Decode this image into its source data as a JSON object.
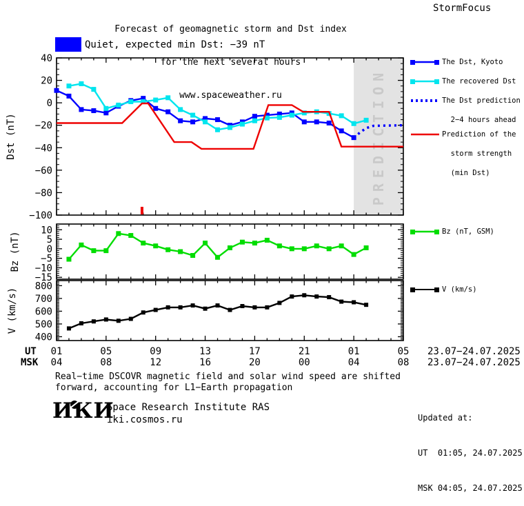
{
  "header": {
    "title_line1": "Forecast of geomagnetic storm and Dst index",
    "title_line2": "for the next several hours",
    "title_line3": "www.spaceweather.ru",
    "brand": "StormFocus"
  },
  "status": {
    "label": "Quiet, expected min Dst: −39 nT",
    "box_color": "#0000ff"
  },
  "colors": {
    "dst_kyoto": "#0000ff",
    "recovered_dst": "#00e5ee",
    "dst_prediction": "#0000ff",
    "storm_prediction": "#ee0000",
    "bz": "#00dd00",
    "v": "#000000",
    "prediction_band": "#e3e3e3",
    "prediction_band_text": "#c9c9c9"
  },
  "chart_data": [
    {
      "id": "dst",
      "type": "line",
      "ylabel": "Dst (nT)",
      "ylim": [
        -100,
        40
      ],
      "yticks": [
        40,
        20,
        0,
        -20,
        -40,
        -60,
        -80,
        -100
      ],
      "y_minor_step": 5,
      "x_hours_range": [
        0,
        28
      ],
      "prediction_band": {
        "label": "PREDICTION",
        "from_hour": 24,
        "to_hour": 28
      },
      "onset_marker_hour": 6.9,
      "series": [
        {
          "name": "The Dst, Kyoto",
          "color": "#0000ff",
          "style": "solid",
          "marker": true,
          "msize": 7,
          "x_start": 0,
          "x_step": 1,
          "values": [
            11,
            6,
            -6,
            -7,
            -9,
            -3,
            2,
            4,
            -5,
            -8,
            -16,
            -17,
            -14,
            -15,
            -20,
            -17,
            -12,
            -11,
            -10,
            -9,
            -17,
            -17,
            -18,
            -25,
            -31
          ]
        },
        {
          "name": "The recovered Dst",
          "color": "#00e5ee",
          "style": "solid",
          "marker": true,
          "msize": 7,
          "x_start": 1,
          "x_step": 1,
          "values": [
            15,
            17,
            12,
            -5,
            -2,
            1,
            1,
            2.5,
            4.5,
            -6,
            -11,
            -17,
            -24,
            -22,
            -19,
            -16,
            -13.5,
            -13,
            -11,
            -9,
            -8,
            -9.5,
            -11.5,
            -18.5,
            -15.5
          ]
        },
        {
          "name": "The Dst prediction 2−4 hours ahead",
          "color": "#0000ff",
          "style": "dotted",
          "marker": false,
          "points": [
            [
              24,
              -31
            ],
            [
              24.5,
              -26.5
            ],
            [
              25,
              -22.5
            ],
            [
              25.6,
              -20.5
            ],
            [
              28,
              -20
            ]
          ]
        },
        {
          "name": "Prediction of the storm strength (min Dst)",
          "color": "#ee0000",
          "style": "solid",
          "marker": false,
          "points": [
            [
              0,
              -18
            ],
            [
              5.3,
              -18
            ],
            [
              6.9,
              -0.5
            ],
            [
              7.4,
              -0.5
            ],
            [
              9.5,
              -35
            ],
            [
              10.9,
              -35
            ],
            [
              11.7,
              -41
            ],
            [
              15.9,
              -41
            ],
            [
              17.1,
              -2
            ],
            [
              19,
              -2
            ],
            [
              19.9,
              -8
            ],
            [
              22,
              -8
            ],
            [
              23,
              -39
            ],
            [
              28,
              -39
            ]
          ]
        }
      ]
    },
    {
      "id": "bz",
      "type": "line",
      "ylabel": "Bz (nT)",
      "ylim": [
        -16,
        13
      ],
      "yticks": [
        10,
        5,
        0,
        -5,
        -10,
        -15
      ],
      "y_minor_step": 1,
      "x_hours_range": [
        0,
        28
      ],
      "series": [
        {
          "name": "Bz (nT, GSM)",
          "color": "#00dd00",
          "style": "solid",
          "marker": true,
          "msize": 7,
          "x_start": 1,
          "x_step": 1,
          "values": [
            -5.5,
            2,
            -1,
            -1,
            8,
            7,
            3,
            1.5,
            -0.5,
            -1.5,
            -3.5,
            3,
            -4.5,
            0.5,
            3.5,
            3,
            4.5,
            1.5,
            0,
            0,
            1.5,
            0,
            1.5,
            -3,
            0.5
          ]
        }
      ]
    },
    {
      "id": "v",
      "type": "line",
      "ylabel": "V (km/s)",
      "ylim": [
        370,
        840
      ],
      "yticks": [
        800,
        700,
        600,
        500,
        400
      ],
      "y_minor_step": 10,
      "x_hours_range": [
        0,
        28
      ],
      "series": [
        {
          "name": "V (km/s)",
          "color": "#000000",
          "style": "solid",
          "marker": true,
          "msize": 6,
          "x_start": 1,
          "x_step": 1,
          "values": [
            465,
            505,
            520,
            535,
            525,
            540,
            590,
            610,
            630,
            630,
            645,
            620,
            645,
            610,
            640,
            630,
            630,
            665,
            715,
            725,
            715,
            710,
            675,
            670,
            650
          ]
        }
      ]
    }
  ],
  "x_axis": {
    "row1_label": "UT",
    "row2_label": "MSK",
    "row1_ticks": [
      "01",
      "05",
      "09",
      "13",
      "17",
      "21",
      "01",
      "05"
    ],
    "row2_ticks": [
      "04",
      "08",
      "12",
      "16",
      "20",
      "00",
      "04",
      "08"
    ],
    "row1_date": "23.07−24.07.2025",
    "row2_date": "23.07−24.07.2025"
  },
  "legend": {
    "dst_kyoto": "The Dst, Kyoto",
    "recovered": "The recovered Dst",
    "prediction_l1": "The Dst prediction",
    "prediction_l2": "2−4 hours ahead",
    "storm_l1": "Prediction of the",
    "storm_l2": "storm strength",
    "storm_l3": "(min Dst)",
    "bz": "Bz (nT, GSM)",
    "v": "V (km/s)"
  },
  "footnote": {
    "line1": "Real−time DSCOVR magnetic field and solar wind speed are shifted",
    "line2": "forward, accounting for L1−Earth propagation"
  },
  "footer": {
    "logo": "ИКИ",
    "institute": "Space Research Institute RAS",
    "site": "iki.cosmos.ru",
    "updated_label": "Updated at:",
    "updated_ut": "UT  01:05, 24.07.2025",
    "updated_msk": "MSK 04:05, 24.07.2025"
  }
}
